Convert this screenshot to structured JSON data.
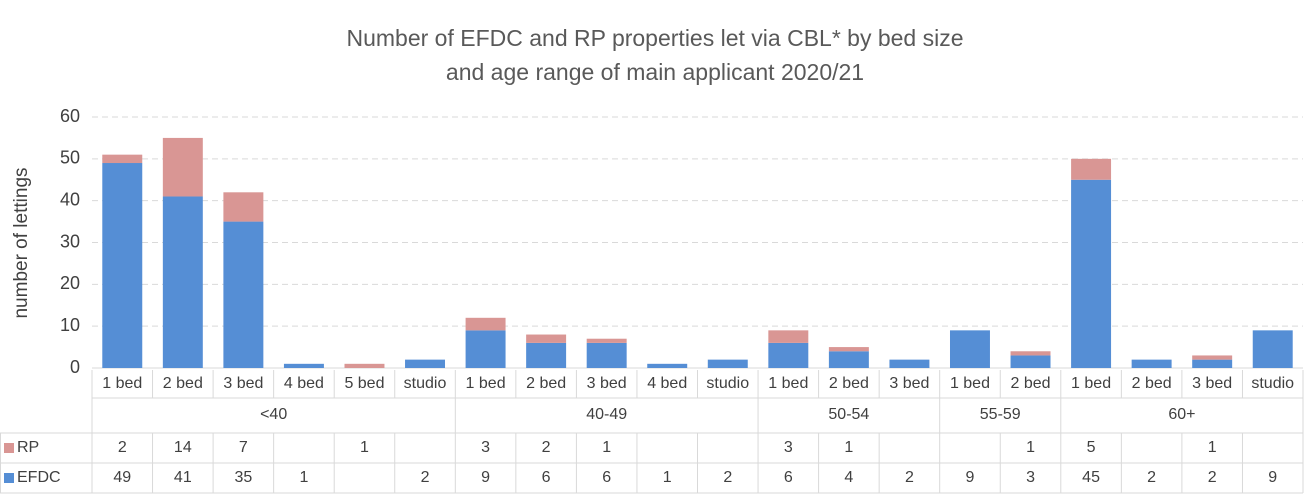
{
  "chart_data": {
    "type": "stacked_bar",
    "title": [
      "Number of  EFDC and RP  properties let via CBL* by bed size",
      "and age range of main applicant 2020/21"
    ],
    "ylabel": "number of lettings",
    "groups": [
      {
        "name": "<40",
        "categories": [
          "1 bed",
          "2 bed",
          "3 bed",
          "4 bed",
          "5 bed",
          "studio"
        ]
      },
      {
        "name": "40-49",
        "categories": [
          "1 bed",
          "2 bed",
          "3 bed",
          "4 bed",
          "studio"
        ]
      },
      {
        "name": "50-54",
        "categories": [
          "1 bed",
          "2 bed",
          "3 bed"
        ]
      },
      {
        "name": "55-59",
        "categories": [
          "1 bed",
          "2 bed"
        ]
      },
      {
        "name": "60+",
        "categories": [
          "1 bed",
          "2 bed",
          "3 bed",
          "studio"
        ]
      }
    ],
    "series": [
      {
        "name": "RP",
        "color": "#d99694",
        "values": [
          2,
          14,
          7,
          null,
          1,
          null,
          3,
          2,
          1,
          null,
          null,
          3,
          1,
          null,
          null,
          1,
          5,
          null,
          1,
          null
        ]
      },
      {
        "name": "EFDC",
        "color": "#558ed5",
        "values": [
          49,
          41,
          35,
          1,
          null,
          2,
          9,
          6,
          6,
          1,
          2,
          6,
          4,
          2,
          9,
          3,
          45,
          2,
          2,
          9
        ]
      }
    ],
    "ylim": [
      0,
      60
    ],
    "yticks": [
      0,
      10,
      20,
      30,
      40,
      50,
      60
    ],
    "grid": true
  }
}
